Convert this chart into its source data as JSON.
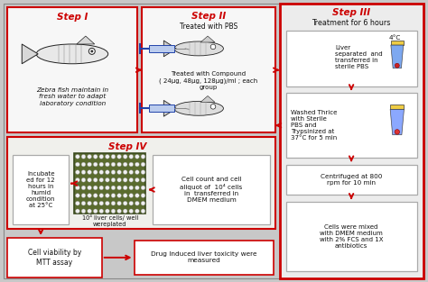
{
  "bg_color": "#c8c8c8",
  "step1_label": "Step I",
  "step1_text": "Zebra fish maintain in\nfresh water to adapt\nlaboratory condition",
  "step2_label": "Step II",
  "step2_text_top": "Treated with PBS",
  "step2_text_bot": "Treated with Compound\n( 24μg, 48μg, 128μg)/ml ; each\ngroup",
  "step3_label": "Step III",
  "step3_title": "Treatment for 6 hours",
  "step3_box1": "Liver\nseparated  and\ntransferred in\nsterile PBS",
  "step3_4c": "4°C",
  "step3_box2": "Washed Thrice\nwith Sterile\nPBS and\nTrypsinized at\n37°C for 5 min",
  "step3_box3": "Centrifuged at 800\nrpm for 10 min",
  "step3_box4": "Cells were mixed\nwith DMEM medium\nwith 2% FCS and 1X\nantibiotics",
  "step4_label": "Step IV",
  "incubate_text": "Incubate\ned for 12\nhours in\nhumid\ncondition\nat 25°C",
  "plate_caption": "10⁴ liver cells/ well\nwereplated",
  "count_text": "Cell count and cell\naliquot of  10⁴ cells\nin  transferred in\nDMEM medium",
  "mtt_text": "Cell viability by\nMTT assay",
  "drug_text": "Drug Induced liver toxicity were\nmeasured",
  "red": "#cc0000",
  "dark_red": "#aa0000",
  "gray_box": "#d4d4d4",
  "white": "#ffffff",
  "light_gray": "#ebebeb"
}
